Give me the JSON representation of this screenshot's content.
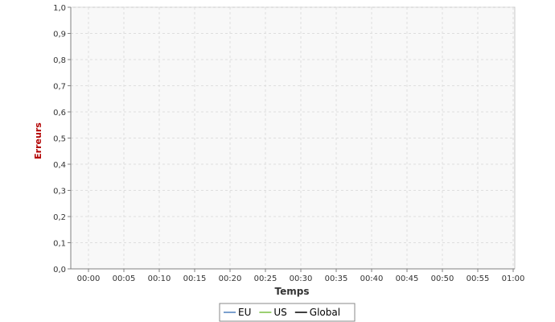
{
  "chart_data": {
    "type": "line",
    "title": "",
    "xlabel": "Temps",
    "ylabel": "Erreurs",
    "x_categories": [
      "00:00",
      "00:05",
      "00:10",
      "00:15",
      "00:20",
      "00:25",
      "00:30",
      "00:35",
      "00:40",
      "00:45",
      "00:50",
      "00:55",
      "01:00"
    ],
    "y_ticks": [
      "0,0",
      "0,1",
      "0,2",
      "0,3",
      "0,4",
      "0,5",
      "0,6",
      "0,7",
      "0,8",
      "0,9",
      "1,0"
    ],
    "ylim": [
      0,
      1
    ],
    "xlim_minutes": [
      0,
      60
    ],
    "grid": true,
    "legend_position": "bottom",
    "series": [
      {
        "name": "EU",
        "color": "#4f81bd",
        "values": []
      },
      {
        "name": "US",
        "color": "#7ac143",
        "values": []
      },
      {
        "name": "Global",
        "color": "#000000",
        "values": []
      }
    ],
    "colors": {
      "plot_background": "#f8f8f8",
      "grid": "#dedede",
      "ylabel": "#b20000",
      "axis_text": "#333333"
    }
  }
}
